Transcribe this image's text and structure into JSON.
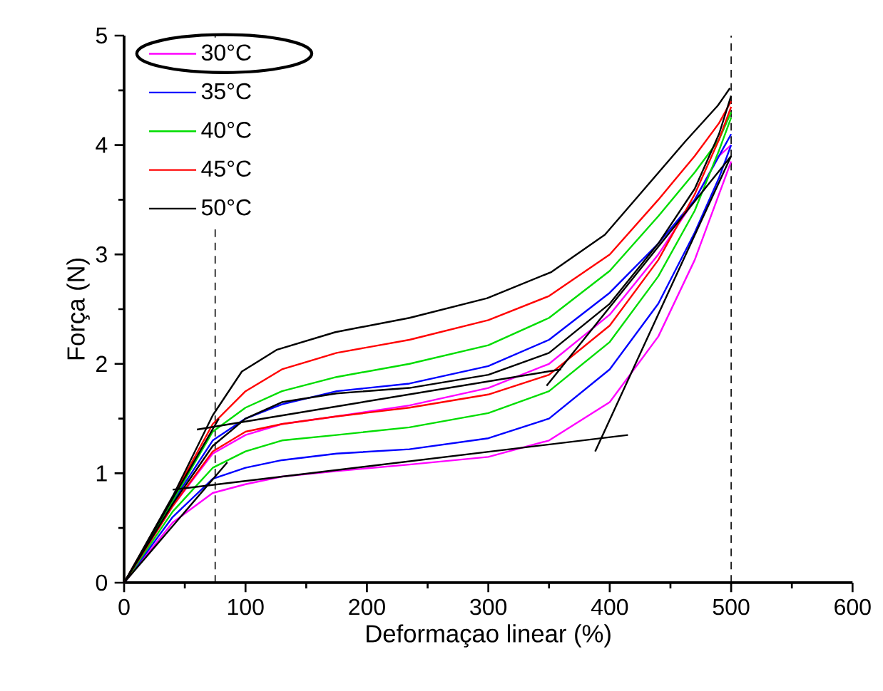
{
  "chart_data": {
    "type": "line",
    "xlabel": "Deformaçao linear (%)",
    "ylabel": "Força (N)",
    "xlim": [
      0,
      600
    ],
    "ylim": [
      0,
      5
    ],
    "xticks": [
      0,
      100,
      200,
      300,
      400,
      500,
      600
    ],
    "yticks": [
      0,
      1,
      2,
      3,
      4,
      5
    ],
    "legend": "top left",
    "series": [
      {
        "name": "30°C",
        "color": "#ff00ff",
        "x": [
          0,
          40,
          73,
          100,
          130,
          175,
          235,
          300,
          350,
          400,
          440,
          470,
          490,
          500
        ],
        "values": [
          0,
          0.7,
          1.18,
          1.35,
          1.45,
          1.52,
          1.62,
          1.78,
          2.0,
          2.45,
          3.0,
          3.5,
          3.9,
          4.0
        ]
      },
      {
        "name": "35°C",
        "color": "#0000ff",
        "x": [
          0,
          40,
          73,
          100,
          130,
          175,
          235,
          300,
          350,
          400,
          440,
          470,
          490,
          500
        ],
        "values": [
          0,
          0.74,
          1.3,
          1.5,
          1.63,
          1.75,
          1.82,
          1.98,
          2.22,
          2.65,
          3.1,
          3.5,
          3.9,
          4.1
        ]
      },
      {
        "name": "40°C",
        "color": "#00dd00",
        "x": [
          0,
          40,
          73,
          100,
          130,
          175,
          235,
          300,
          350,
          400,
          440,
          470,
          490,
          500
        ],
        "values": [
          0,
          0.75,
          1.38,
          1.6,
          1.75,
          1.88,
          2.0,
          2.17,
          2.42,
          2.85,
          3.35,
          3.75,
          4.05,
          4.3
        ]
      },
      {
        "name": "45°C",
        "color": "#ff0000",
        "x": [
          0,
          40,
          73,
          100,
          130,
          175,
          235,
          300,
          350,
          400,
          440,
          470,
          490,
          500
        ],
        "values": [
          0,
          0.78,
          1.45,
          1.75,
          1.95,
          2.1,
          2.22,
          2.4,
          2.62,
          3.0,
          3.5,
          3.9,
          4.2,
          4.4
        ]
      },
      {
        "name": "50°C",
        "color": "#000000",
        "x": [
          0,
          41,
          73,
          97,
          126,
          174,
          235,
          299,
          352,
          396,
          424,
          462,
          489,
          499
        ],
        "values": [
          0,
          0.81,
          1.53,
          1.93,
          2.13,
          2.29,
          2.42,
          2.6,
          2.84,
          3.18,
          3.54,
          4.03,
          4.36,
          4.52
        ]
      },
      {
        "color": "#ff00ff",
        "x": [
          0,
          40,
          73,
          100,
          130,
          175,
          235,
          300,
          350,
          400,
          440,
          470,
          490,
          500
        ],
        "values": [
          0,
          0.55,
          0.82,
          0.9,
          0.97,
          1.02,
          1.08,
          1.15,
          1.3,
          1.65,
          2.25,
          2.95,
          3.55,
          3.85
        ]
      },
      {
        "color": "#0000ff",
        "x": [
          0,
          40,
          73,
          100,
          130,
          175,
          235,
          300,
          350,
          400,
          440,
          470,
          490,
          500
        ],
        "values": [
          0,
          0.6,
          0.95,
          1.05,
          1.12,
          1.18,
          1.22,
          1.32,
          1.5,
          1.95,
          2.55,
          3.2,
          3.7,
          4.0
        ]
      },
      {
        "color": "#00dd00",
        "x": [
          0,
          40,
          73,
          100,
          130,
          175,
          235,
          300,
          350,
          400,
          440,
          470,
          490,
          500
        ],
        "values": [
          0,
          0.65,
          1.05,
          1.2,
          1.3,
          1.35,
          1.42,
          1.55,
          1.75,
          2.2,
          2.8,
          3.4,
          3.95,
          4.25
        ]
      },
      {
        "color": "#ff0000",
        "x": [
          0,
          40,
          73,
          100,
          130,
          175,
          235,
          300,
          350,
          400,
          440,
          470,
          490,
          500
        ],
        "values": [
          0,
          0.7,
          1.2,
          1.38,
          1.45,
          1.52,
          1.6,
          1.72,
          1.9,
          2.35,
          2.95,
          3.55,
          4.05,
          4.35
        ]
      },
      {
        "color": "#000000",
        "x": [
          0,
          40,
          73,
          100,
          130,
          175,
          235,
          300,
          350,
          400,
          440,
          470,
          490,
          500
        ],
        "values": [
          0,
          0.72,
          1.25,
          1.5,
          1.65,
          1.73,
          1.78,
          1.9,
          2.1,
          2.55,
          3.1,
          3.6,
          4.1,
          4.45
        ]
      },
      {
        "color": "#000000",
        "x": [
          0,
          78
        ],
        "values": [
          0,
          1.5
        ]
      },
      {
        "color": "#000000",
        "x": [
          0,
          85
        ],
        "values": [
          0,
          1.1
        ]
      },
      {
        "color": "#000000",
        "x": [
          40,
          415
        ],
        "values": [
          0.85,
          1.35
        ]
      },
      {
        "color": "#000000",
        "x": [
          388,
          500
        ],
        "values": [
          1.2,
          3.9
        ]
      },
      {
        "color": "#000000",
        "x": [
          60,
          360
        ],
        "values": [
          1.4,
          1.95
        ]
      },
      {
        "color": "#000000",
        "x": [
          348,
          500
        ],
        "values": [
          1.8,
          3.9
        ]
      }
    ],
    "ref_lines": [
      {
        "axis": "x",
        "value": 75,
        "line_style": "dashed",
        "color": "#000000"
      },
      {
        "axis": "x",
        "value": 500,
        "line_style": "dashed",
        "color": "#000000"
      }
    ]
  }
}
